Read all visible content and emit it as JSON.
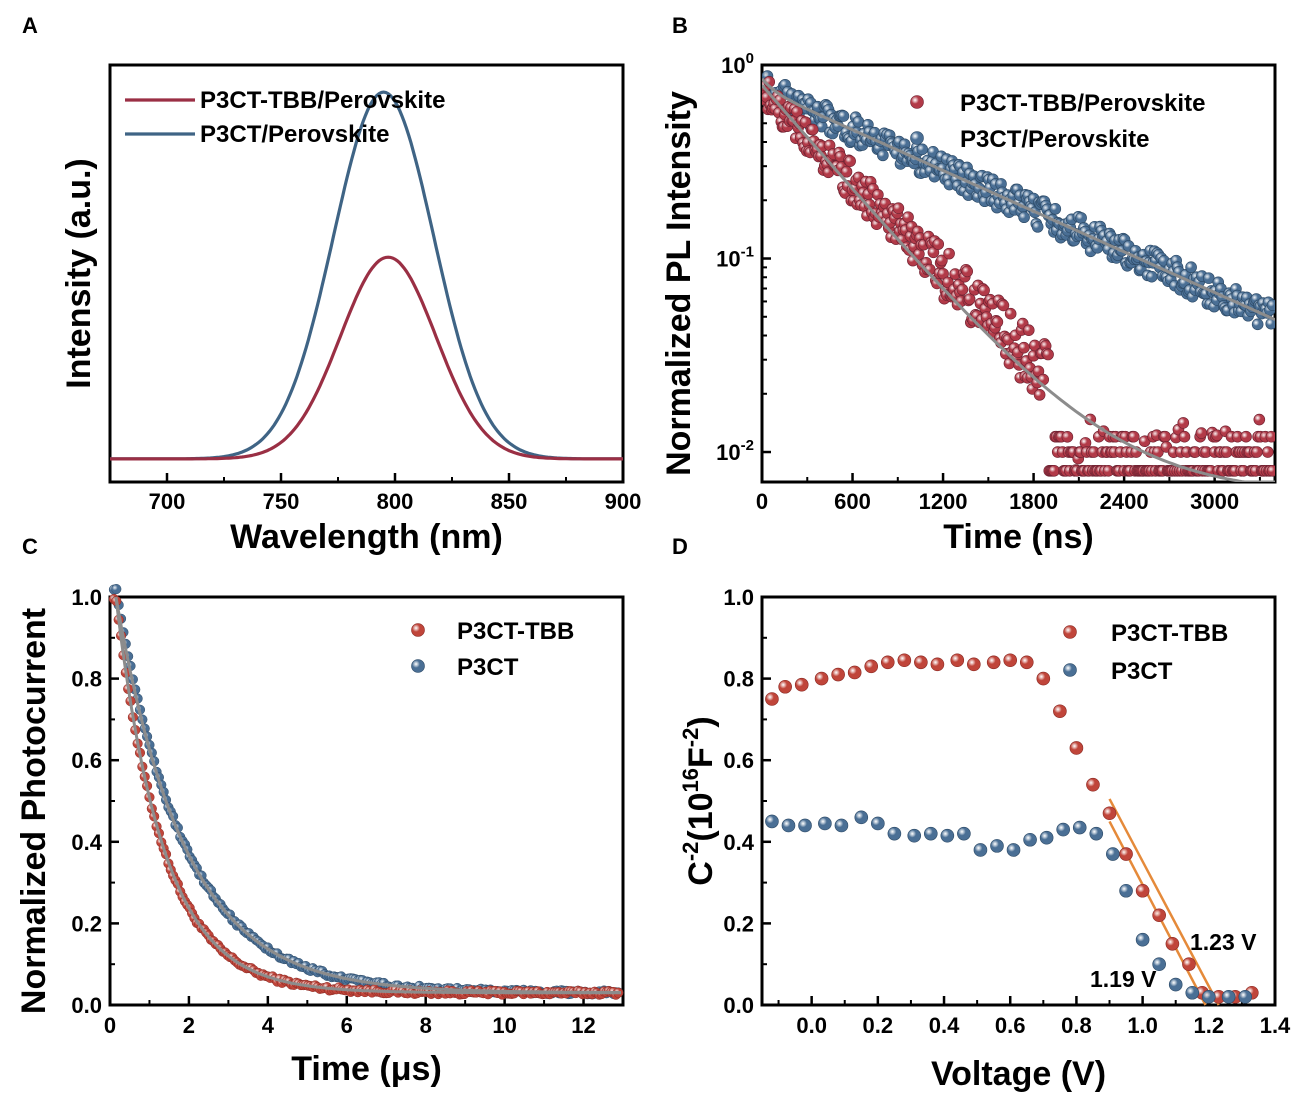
{
  "colors": {
    "red": "#9a2f44",
    "blue": "#3f6485",
    "red_marker": "#b23a48",
    "blue_marker": "#4a6f95",
    "brightred": "#c0453a",
    "fit": "#8c8c8c",
    "orange": "#e58a3a"
  },
  "chart_data": [
    {
      "panel": "A",
      "type": "line",
      "xlabel": "Wavelength (nm)",
      "ylabel": "Intensity (a.u.)",
      "xlim": [
        675,
        900
      ],
      "ylim": [
        0,
        1.05
      ],
      "xticks": [
        700,
        750,
        800,
        850,
        900
      ],
      "yticks": [],
      "legend_position": "top-left",
      "series": [
        {
          "name": "P3CT-TBB/Perovskite",
          "peak_x": 797,
          "peak_y": 0.55,
          "sigma": 21,
          "color": "red"
        },
        {
          "name": "P3CT/Perovskite",
          "peak_x": 795,
          "peak_y": 1.0,
          "sigma": 22,
          "color": "blue"
        }
      ]
    },
    {
      "panel": "B",
      "type": "scatter",
      "xlabel": "Time (ns)",
      "ylabel": "Normalized PL Intensity",
      "xlim": [
        0,
        3400
      ],
      "ylim": [
        0.007,
        1
      ],
      "yscale": "log",
      "xticks": [
        0,
        600,
        1200,
        1800,
        2400,
        3000
      ],
      "yticks": [
        {
          "value": 1,
          "base": "10",
          "exp": "0"
        },
        {
          "value": 0.1,
          "base": "10",
          "exp": "-1"
        },
        {
          "value": 0.01,
          "base": "10",
          "exp": "-2"
        }
      ],
      "legend_position": "top-right",
      "series": [
        {
          "name": "P3CT-TBB/Perovskite",
          "decay_tau": 560,
          "start": 0.72,
          "floor": 0.008,
          "color": "red"
        },
        {
          "name": "P3CT/Perovskite",
          "decay_tau": 1240,
          "start": 0.75,
          "floor": 0.0,
          "color": "blue"
        }
      ]
    },
    {
      "panel": "C",
      "type": "scatter",
      "xlabel": "Time (μs)",
      "ylabel": "Normalized Photocurrent",
      "xlim": [
        0,
        13
      ],
      "ylim": [
        0,
        1.0
      ],
      "xticks": [
        0,
        2,
        4,
        6,
        8,
        10,
        12
      ],
      "yticks": [
        "0.0",
        "0.2",
        "0.4",
        "0.6",
        "0.8",
        "1.0"
      ],
      "legend_position": "top-right",
      "series": [
        {
          "name": "P3CT-TBB",
          "decay_tau": 1.2,
          "floor": 0.03,
          "color": "brightred"
        },
        {
          "name": "P3CT",
          "decay_tau": 1.75,
          "floor": 0.03,
          "color": "blue"
        }
      ]
    },
    {
      "panel": "D",
      "type": "scatter",
      "xlabel": "Voltage (V)",
      "ylabel_parts": [
        "C",
        "-2",
        "(10",
        "16",
        "F",
        "-2",
        ")"
      ],
      "xlim": [
        -0.15,
        1.4
      ],
      "ylim": [
        0,
        1.0
      ],
      "xticks": [
        "0.0",
        "0.2",
        "0.4",
        "0.6",
        "0.8",
        "1.0",
        "1.2",
        "1.4"
      ],
      "yticks": [
        "0.0",
        "0.2",
        "0.4",
        "0.6",
        "0.8",
        "1.0"
      ],
      "legend_position": "top-right",
      "annotations": [
        "1.23 V",
        "1.19 V"
      ],
      "series": [
        {
          "name": "P3CT-TBB",
          "color": "brightred",
          "x": [
            -0.12,
            -0.08,
            -0.03,
            0.03,
            0.08,
            0.13,
            0.18,
            0.23,
            0.28,
            0.33,
            0.38,
            0.44,
            0.49,
            0.55,
            0.6,
            0.65,
            0.7,
            0.75,
            0.8,
            0.85,
            0.9,
            0.95,
            1.0,
            1.05,
            1.09,
            1.14,
            1.18,
            1.23,
            1.28,
            1.33
          ],
          "y": [
            0.75,
            0.78,
            0.785,
            0.8,
            0.81,
            0.815,
            0.83,
            0.84,
            0.845,
            0.84,
            0.835,
            0.845,
            0.835,
            0.84,
            0.845,
            0.84,
            0.8,
            0.72,
            0.63,
            0.54,
            0.47,
            0.37,
            0.28,
            0.22,
            0.15,
            0.1,
            0.03,
            0.02,
            0.02,
            0.03
          ]
        },
        {
          "name": "P3CT",
          "color": "blue",
          "x": [
            -0.12,
            -0.07,
            -0.02,
            0.04,
            0.09,
            0.15,
            0.2,
            0.25,
            0.31,
            0.36,
            0.41,
            0.46,
            0.51,
            0.56,
            0.61,
            0.66,
            0.71,
            0.76,
            0.81,
            0.86,
            0.91,
            0.95,
            1.0,
            1.05,
            1.1,
            1.15,
            1.2,
            1.26,
            1.31
          ],
          "y": [
            0.45,
            0.44,
            0.44,
            0.445,
            0.44,
            0.46,
            0.445,
            0.42,
            0.415,
            0.42,
            0.415,
            0.42,
            0.38,
            0.39,
            0.38,
            0.405,
            0.41,
            0.43,
            0.435,
            0.42,
            0.37,
            0.28,
            0.16,
            0.1,
            0.05,
            0.03,
            0.02,
            0.02,
            0.02
          ]
        }
      ],
      "fit_lines": [
        {
          "x1": 0.9,
          "y1": 0.505,
          "x2": 1.23,
          "y2": 0.0
        },
        {
          "x1": 0.9,
          "y1": 0.45,
          "x2": 1.19,
          "y2": 0.0
        }
      ]
    }
  ]
}
